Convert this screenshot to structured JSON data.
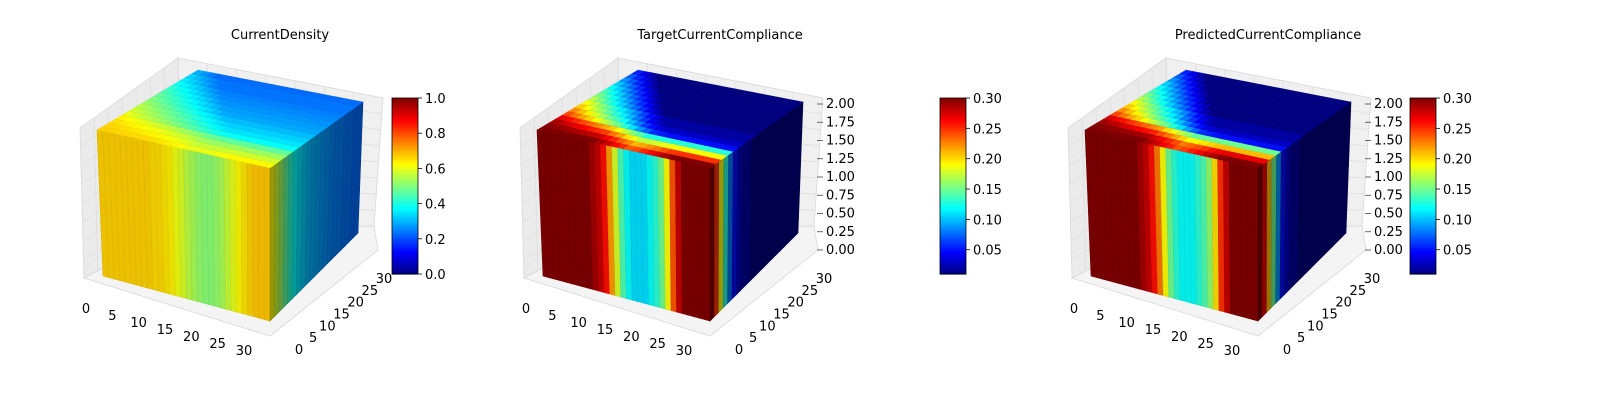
{
  "chart_data": [
    {
      "type": "3d-voxel",
      "title": "CurrentDensity",
      "x_ticks": [
        "0",
        "5",
        "10",
        "15",
        "20",
        "25",
        "30"
      ],
      "y_ticks": [
        "0",
        "5",
        "10",
        "15",
        "20",
        "25",
        "30"
      ],
      "z_ticks": [],
      "xlim": [
        0,
        32
      ],
      "ylim": [
        0,
        32
      ],
      "zlim": [
        0,
        2
      ],
      "colorbar": {
        "min": 0.0,
        "max": 1.0,
        "ticks": [
          "0.0",
          "0.2",
          "0.4",
          "0.6",
          "0.8",
          "1.0"
        ],
        "colormap": "jet"
      },
      "front_face_values": [
        0.67,
        0.67,
        0.67,
        0.67,
        0.67,
        0.67,
        0.67,
        0.67,
        0.67,
        0.66,
        0.66,
        0.65,
        0.64,
        0.61,
        0.59,
        0.56,
        0.54,
        0.52,
        0.51,
        0.51,
        0.52,
        0.54,
        0.57,
        0.6,
        0.63,
        0.65,
        0.67,
        0.68,
        0.68,
        0.68
      ],
      "side_face_values": [
        0.63,
        0.58,
        0.53,
        0.47,
        0.42,
        0.38,
        0.35,
        0.33,
        0.31,
        0.3,
        0.29,
        0.28,
        0.27,
        0.26,
        0.25,
        0.25,
        0.24,
        0.24,
        0.23,
        0.23
      ]
    },
    {
      "type": "3d-voxel",
      "title": "TargetCurrentCompliance",
      "x_ticks": [
        "0",
        "5",
        "10",
        "15",
        "20",
        "25",
        "30"
      ],
      "y_ticks": [
        "0",
        "5",
        "10",
        "15",
        "20",
        "25",
        "30"
      ],
      "z_ticks": [
        "0.00",
        "0.25",
        "0.50",
        "0.75",
        "1.00",
        "1.25",
        "1.50",
        "1.75",
        "2.00"
      ],
      "xlim": [
        0,
        32
      ],
      "ylim": [
        0,
        32
      ],
      "zlim": [
        0,
        2
      ],
      "colorbar": {
        "min": 0.01,
        "max": 0.3,
        "ticks": [
          "0.05",
          "0.10",
          "0.15",
          "0.20",
          "0.25",
          "0.30"
        ],
        "colormap": "jet"
      },
      "front_face_values": [
        0.3,
        0.3,
        0.3,
        0.3,
        0.3,
        0.3,
        0.3,
        0.3,
        0.3,
        0.29,
        0.28,
        0.26,
        0.22,
        0.18,
        0.14,
        0.12,
        0.11,
        0.11,
        0.11,
        0.12,
        0.13,
        0.15,
        0.19,
        0.24,
        0.28,
        0.3,
        0.3,
        0.3,
        0.3,
        0.3
      ],
      "side_face_values": [
        0.3,
        0.25,
        0.19,
        0.13,
        0.08,
        0.05,
        0.03,
        0.02,
        0.02,
        0.01,
        0.01,
        0.01,
        0.01,
        0.01,
        0.01,
        0.01,
        0.01,
        0.01,
        0.01,
        0.01
      ]
    },
    {
      "type": "3d-voxel",
      "title": "PredictedCurrentCompliance",
      "x_ticks": [
        "0",
        "5",
        "10",
        "15",
        "20",
        "25",
        "30"
      ],
      "y_ticks": [
        "0",
        "5",
        "10",
        "15",
        "20",
        "25",
        "30"
      ],
      "z_ticks": [
        "0.00",
        "0.25",
        "0.50",
        "0.75",
        "1.00",
        "1.25",
        "1.50",
        "1.75",
        "2.00"
      ],
      "xlim": [
        0,
        32
      ],
      "ylim": [
        0,
        32
      ],
      "zlim": [
        0,
        2
      ],
      "colorbar": {
        "min": 0.01,
        "max": 0.3,
        "ticks": [
          "0.05",
          "0.10",
          "0.15",
          "0.20",
          "0.25",
          "0.30"
        ],
        "colormap": "jet"
      },
      "front_face_values": [
        0.3,
        0.3,
        0.3,
        0.3,
        0.3,
        0.3,
        0.3,
        0.3,
        0.3,
        0.29,
        0.28,
        0.26,
        0.23,
        0.19,
        0.15,
        0.13,
        0.12,
        0.12,
        0.12,
        0.13,
        0.14,
        0.16,
        0.2,
        0.25,
        0.28,
        0.3,
        0.3,
        0.3,
        0.3,
        0.3
      ],
      "side_face_values": [
        0.3,
        0.27,
        0.21,
        0.15,
        0.09,
        0.05,
        0.03,
        0.02,
        0.02,
        0.01,
        0.01,
        0.01,
        0.01,
        0.01,
        0.01,
        0.01,
        0.01,
        0.01,
        0.01,
        0.01
      ]
    }
  ]
}
